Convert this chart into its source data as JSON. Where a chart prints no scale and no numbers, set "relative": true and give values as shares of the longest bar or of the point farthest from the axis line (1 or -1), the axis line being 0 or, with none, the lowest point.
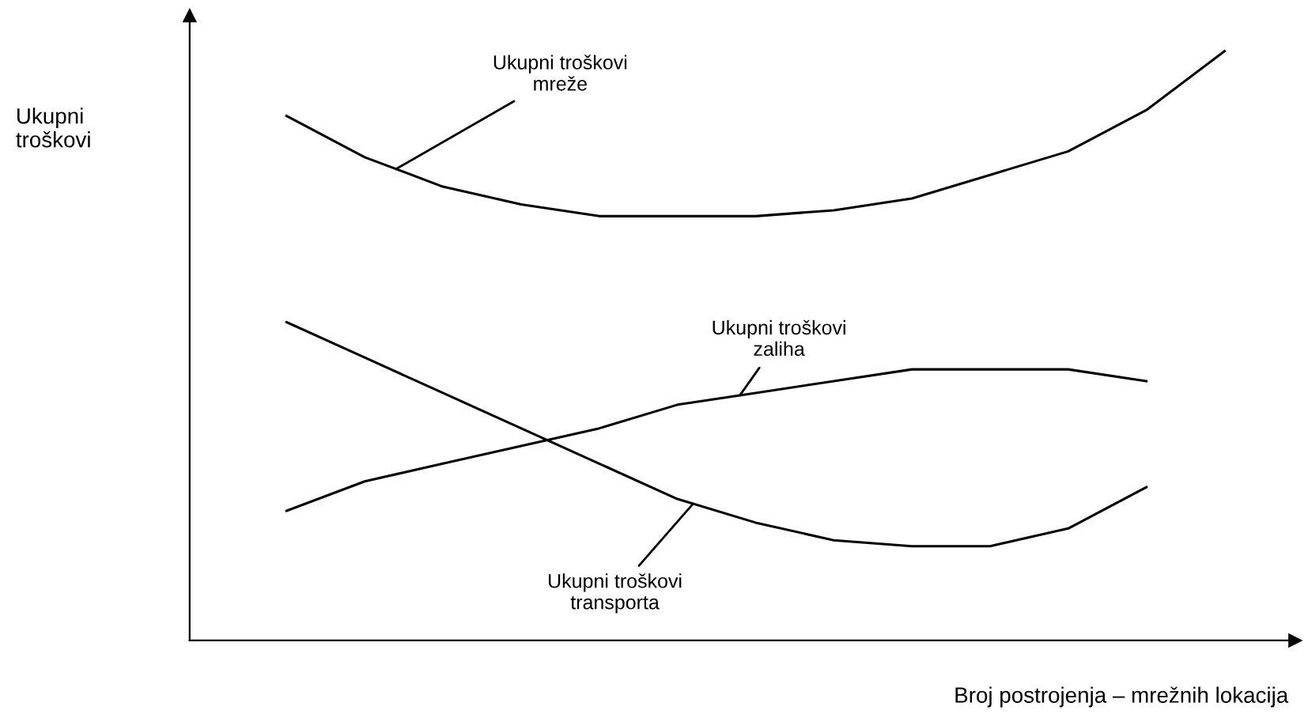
{
  "chart_data": {
    "type": "line",
    "relative": true,
    "xlabel": "Broj postrojenja – mrežnih lokacija",
    "ylabel": "Ukupni\ntroškovi",
    "categories": [
      null,
      null,
      null,
      null,
      null,
      null,
      null,
      null,
      null,
      null,
      null,
      null,
      null
    ],
    "series": [
      {
        "color": "#000000",
        "values": [
          0.89,
          0.82,
          0.77,
          0.74,
          0.72,
          0.72,
          0.72,
          0.73,
          0.75,
          0.79,
          0.83,
          0.9,
          1.0
        ]
      },
      {
        "color": "#000000",
        "values": [
          0.54,
          0.48,
          0.42,
          0.36,
          0.3,
          0.24,
          0.2,
          0.17,
          0.16,
          0.16,
          0.19,
          0.26,
          null
        ]
      },
      {
        "color": "#000000",
        "values": [
          0.22,
          0.27,
          0.3,
          0.33,
          0.36,
          0.4,
          0.42,
          0.44,
          0.46,
          0.46,
          0.46,
          0.44,
          null
        ]
      }
    ],
    "annotations": [
      "Ukupni troškovi\nmreže",
      "Ukupni troškovi\ntransporta",
      "Ukupni troškovi\nzaliha"
    ],
    "legend": false,
    "marker": "none",
    "line_style": "solid"
  }
}
